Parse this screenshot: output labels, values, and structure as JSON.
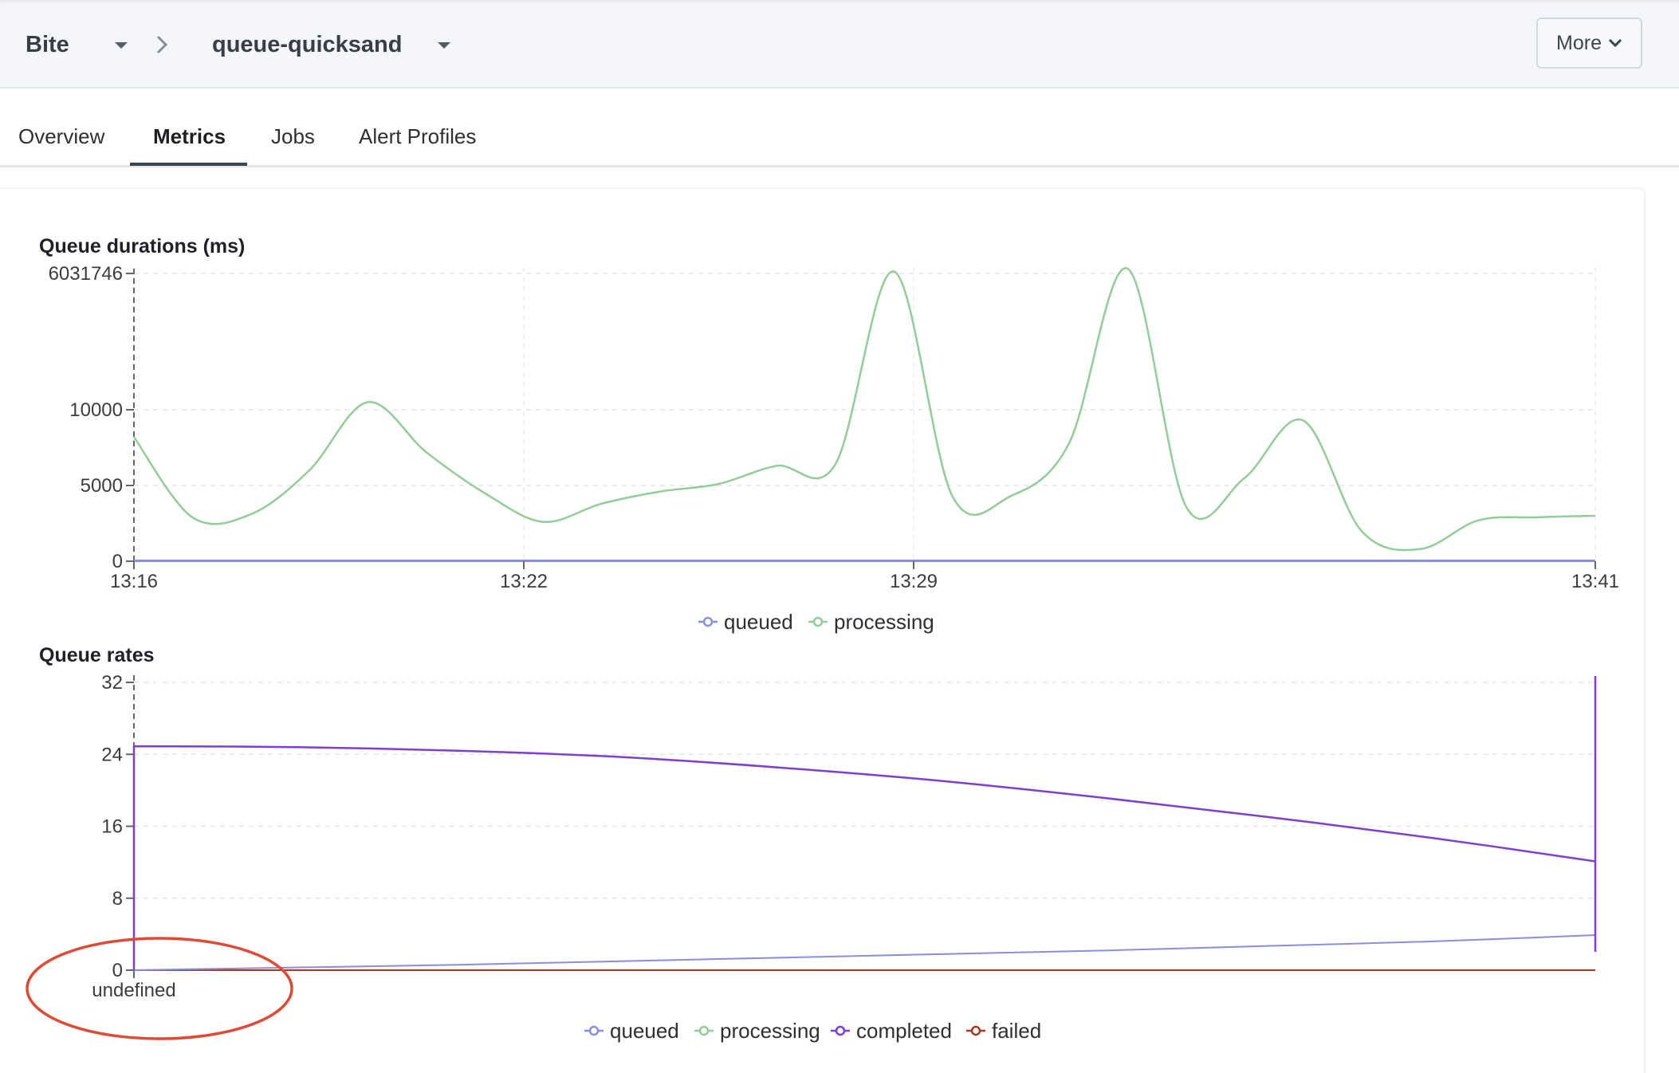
{
  "breadcrumb": {
    "project": "Bite",
    "queue": "queue-quicksand"
  },
  "header": {
    "more_label": "More"
  },
  "tabs": [
    {
      "label": "Overview",
      "active": false
    },
    {
      "label": "Metrics",
      "active": true
    },
    {
      "label": "Jobs",
      "active": false
    },
    {
      "label": "Alert Profiles",
      "active": false
    }
  ],
  "colors": {
    "queued": "#8a8ee0",
    "processing": "#93cc98",
    "completed": "#7d3fd0",
    "failed": "#a13a25",
    "annotation": "#e04a34"
  },
  "icons": {
    "dropdown": "caret-down-icon",
    "separator": "chevron-right-icon",
    "more": "chevron-down-icon"
  },
  "chart_data": [
    {
      "type": "line",
      "title": "Queue durations (ms)",
      "x_ticks": [
        "13:16",
        "13:22",
        "13:29",
        "13:41"
      ],
      "y_ticks": [
        "0",
        "5000",
        "10000",
        "6031746"
      ],
      "legend": "bottom-center",
      "grid": true,
      "series": [
        {
          "name": "queued",
          "x": [
            "13:16",
            "13:41"
          ],
          "y": [
            0,
            0
          ]
        },
        {
          "name": "processing",
          "x": [
            "13:16",
            "13:17",
            "13:18",
            "13:19",
            "13:20",
            "13:21",
            "13:22",
            "13:23",
            "13:24",
            "13:25",
            "13:26",
            "13:27",
            "13:28",
            "13:29",
            "13:30",
            "13:31",
            "13:32",
            "13:33",
            "13:34",
            "13:35",
            "13:36",
            "13:37",
            "13:38",
            "13:39",
            "13:40",
            "13:41"
          ],
          "y": [
            8200,
            2900,
            3100,
            6000,
            10500,
            7200,
            4500,
            2600,
            3800,
            4600,
            5100,
            6300,
            6400,
            5900000,
            4300,
            4300,
            7800,
            6031746,
            3600,
            5500,
            9300,
            2000,
            800,
            2700,
            2900,
            3000
          ]
        }
      ]
    },
    {
      "type": "line",
      "title": "Queue rates",
      "x_ticks": [
        "undefined"
      ],
      "y_ticks": [
        "0",
        "8",
        "16",
        "24",
        "32"
      ],
      "ylim": [
        0,
        32
      ],
      "legend": "bottom-center",
      "grid": true,
      "series": [
        {
          "name": "queued",
          "y": [
            0,
            0.3,
            0.6,
            1.0,
            1.4,
            1.8,
            2.2,
            2.7,
            3.2,
            3.9
          ]
        },
        {
          "name": "processing",
          "y": [
            0,
            0,
            0,
            0,
            0,
            0,
            0,
            0,
            0,
            0
          ]
        },
        {
          "name": "completed",
          "y": [
            24.9,
            24.8,
            24.4,
            23.7,
            22.5,
            21.0,
            19.1,
            17.0,
            14.7,
            12.1
          ]
        },
        {
          "name": "failed",
          "y": [
            0,
            0,
            0,
            0,
            0,
            0,
            0,
            0,
            0,
            0
          ]
        }
      ]
    }
  ]
}
